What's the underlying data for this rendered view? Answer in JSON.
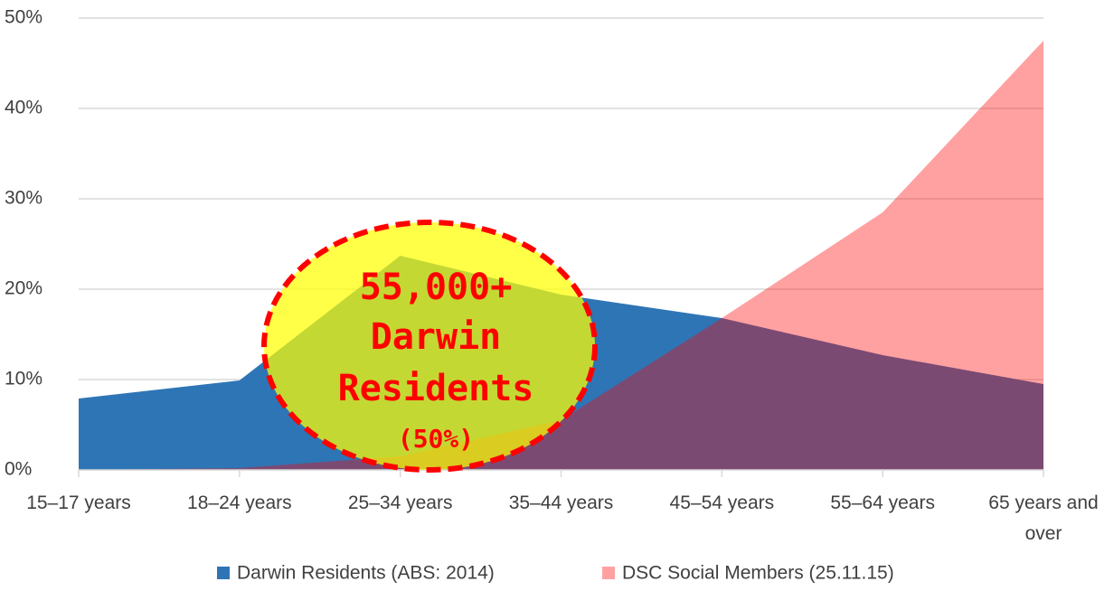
{
  "chart_data": {
    "type": "area",
    "categories": [
      "15–17 years",
      "18–24 years",
      "25–34 years",
      "35–44 years",
      "45–54 years",
      "55–64 years",
      "65 years and over"
    ],
    "series": [
      {
        "name": "Darwin Residents (ABS: 2014)",
        "color": "#2e75b6",
        "opacity": 1,
        "values": [
          7.9,
          9.9,
          23.7,
          19.4,
          16.8,
          12.7,
          9.5
        ]
      },
      {
        "name": "DSC Social Members (25.11.15)",
        "color": "#ff0000",
        "opacity": 0.37,
        "values": [
          0,
          0.2,
          1.5,
          5.5,
          16.8,
          28.5,
          47.5
        ]
      }
    ],
    "ylim": [
      0,
      50
    ],
    "yticks": [
      {
        "value": 0,
        "label": "0%"
      },
      {
        "value": 10,
        "label": "10%"
      },
      {
        "value": 20,
        "label": "20%"
      },
      {
        "value": 30,
        "label": "30%"
      },
      {
        "value": 40,
        "label": "40%"
      },
      {
        "value": 50,
        "label": "50%"
      }
    ],
    "grid": true,
    "legend": "bottom",
    "annotations": [
      "55,000+",
      "Darwin",
      "Residents",
      "(50%)"
    ]
  }
}
